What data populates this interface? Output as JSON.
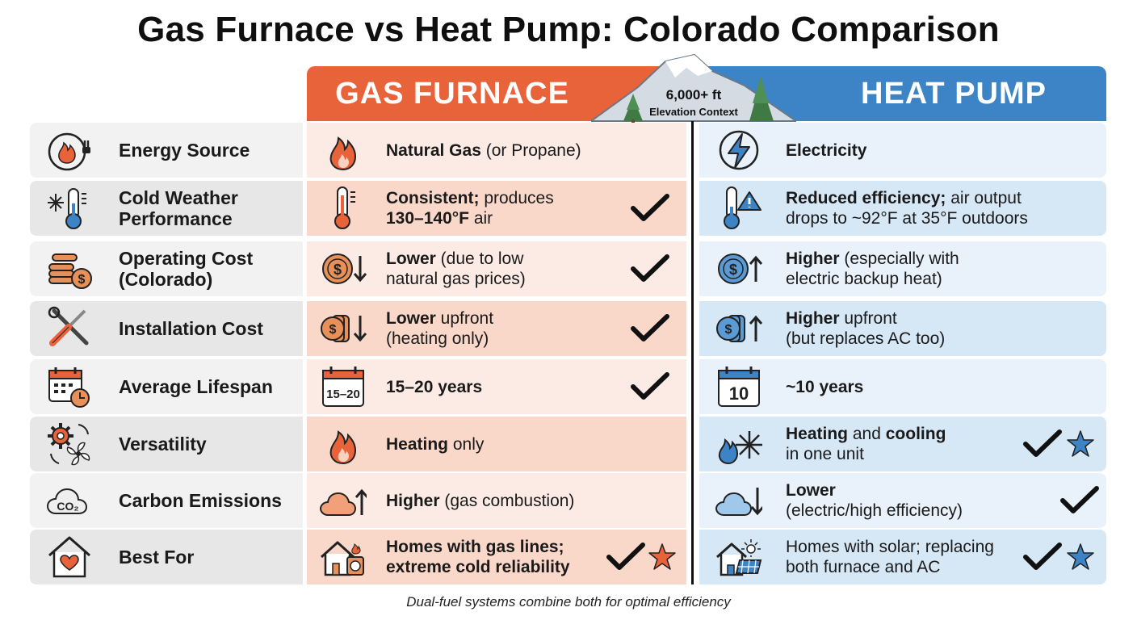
{
  "title": "Gas Furnace vs Heat Pump: Colorado Comparison",
  "columns": {
    "gas": "GAS FURNACE",
    "hp": "HEAT PUMP"
  },
  "badge": {
    "line1": "6,000+ ft",
    "line2": "Elevation Context"
  },
  "colors": {
    "gas_accent": "#e8623a",
    "hp_accent": "#3d84c6",
    "check": "#111111"
  },
  "rows": [
    {
      "label": "Energy Source",
      "label_icon": "plug-flame-icon",
      "gas": {
        "bold": "Natural Gas",
        "rest": " (or Propane)",
        "bold2": "",
        "rest2": "",
        "icon": "flame-icon",
        "check": false,
        "star": false
      },
      "hp": {
        "bold": "Electricity",
        "rest": "",
        "bold2": "",
        "rest2": "",
        "icon": "lightning-icon",
        "check": false,
        "star": false
      }
    },
    {
      "label": "Cold Weather Performance",
      "label_icon": "snowflake-thermometer-icon",
      "gas": {
        "bold": "Consistent;",
        "rest": " produces",
        "bold2": "130–140°F",
        "rest2": " air",
        "icon": "thermometer-hot-icon",
        "check": true,
        "star": false
      },
      "hp": {
        "bold": "Reduced efficiency;",
        "rest": " air output",
        "bold2": "",
        "rest2": "drops to ~92°F at 35°F outdoors",
        "icon": "thermometer-warning-icon",
        "check": false,
        "star": false
      }
    },
    {
      "label": "Operating Cost (Colorado)",
      "label_icon": "coins-icon",
      "gas": {
        "bold": "Lower",
        "rest": " (due to low",
        "bold2": "",
        "rest2": "natural gas prices)",
        "icon": "coin-down-icon",
        "check": true,
        "star": false
      },
      "hp": {
        "bold": "Higher",
        "rest": " (especially with",
        "bold2": "",
        "rest2": "electric backup heat)",
        "icon": "coin-up-icon",
        "check": false,
        "star": false
      }
    },
    {
      "label": "Installation Cost",
      "label_icon": "tools-icon",
      "gas": {
        "bold": "Lower",
        "rest": " upfront",
        "bold2": "",
        "rest2": "(heating only)",
        "icon": "coin-stack-down-icon",
        "check": true,
        "star": false
      },
      "hp": {
        "bold": "Higher",
        "rest": " upfront",
        "bold2": "",
        "rest2": "(but replaces AC too)",
        "icon": "coin-stack-up-icon",
        "check": false,
        "star": false
      }
    },
    {
      "label": "Average Lifespan",
      "label_icon": "calendar-clock-icon",
      "gas": {
        "bold": "15–20 years",
        "rest": "",
        "bold2": "",
        "rest2": "",
        "icon": "calendar-15-20-icon",
        "icon_text": "15–20",
        "check": true,
        "star": false
      },
      "hp": {
        "bold": "~10 years",
        "rest": "",
        "bold2": "",
        "rest2": "",
        "icon": "calendar-10-icon",
        "icon_text": "10",
        "check": false,
        "star": false
      }
    },
    {
      "label": "Versatility",
      "label_icon": "gear-fan-icon",
      "gas": {
        "bold": "Heating",
        "rest": " only",
        "bold2": "",
        "rest2": "",
        "icon": "flame-icon",
        "check": false,
        "star": false
      },
      "hp": {
        "bold": "Heating",
        "rest": " and ",
        "bold2": "",
        "rest2": "in one unit",
        "boldtail": "cooling",
        "icon": "flame-snowflake-icon",
        "check": true,
        "star": true
      }
    },
    {
      "label": "Carbon Emissions",
      "label_icon": "co2-cloud-icon",
      "label_icon_text": "CO₂",
      "gas": {
        "bold": "Higher",
        "rest": " (gas combustion)",
        "bold2": "",
        "rest2": "",
        "icon": "cloud-up-icon",
        "check": false,
        "star": false
      },
      "hp": {
        "bold": "Lower",
        "rest": "",
        "bold2": "",
        "rest2": "(electric/high efficiency)",
        "icon": "cloud-down-icon",
        "check": true,
        "star": false
      }
    },
    {
      "label": "Best For",
      "label_icon": "house-heart-icon",
      "gas": {
        "bold": "Homes with gas lines;",
        "rest": "",
        "bold2": "extreme cold reliability",
        "rest2": "",
        "icon": "house-gas-meter-icon",
        "check": true,
        "star": true
      },
      "hp": {
        "bold": "",
        "rest": "Homes with solar; replacing",
        "bold2": "",
        "rest2": "both furnace and AC",
        "icon": "house-solar-icon",
        "check": true,
        "star": true
      }
    }
  ],
  "footer": "Dual-fuel systems combine both for optimal efficiency"
}
